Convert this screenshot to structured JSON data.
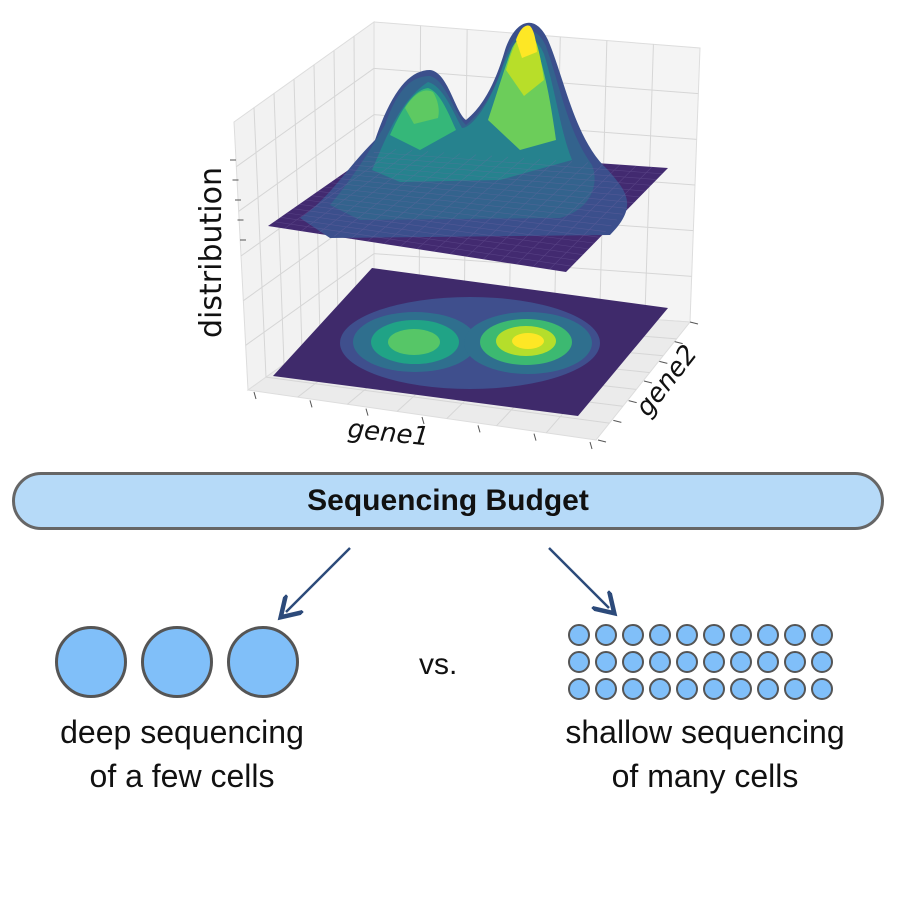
{
  "plot": {
    "zlabel": "distribution",
    "xlabel": "gene1",
    "ylabel": "gene2",
    "colormap": [
      "#440154",
      "#3b528b",
      "#21918c",
      "#5ec962",
      "#fde725"
    ]
  },
  "budget": {
    "label": "Sequencing Budget",
    "fill": "#b6daf8"
  },
  "left": {
    "cell_count": 3,
    "caption_line1": "deep sequencing",
    "caption_line2": "of a few cells"
  },
  "vs_label": "vs.",
  "right": {
    "cell_rows": 3,
    "cell_cols": 10,
    "caption_line1": "shallow sequencing",
    "caption_line2": "of many cells"
  },
  "cell_color": "#80bff9",
  "arrow_color": "#2c4a7a"
}
